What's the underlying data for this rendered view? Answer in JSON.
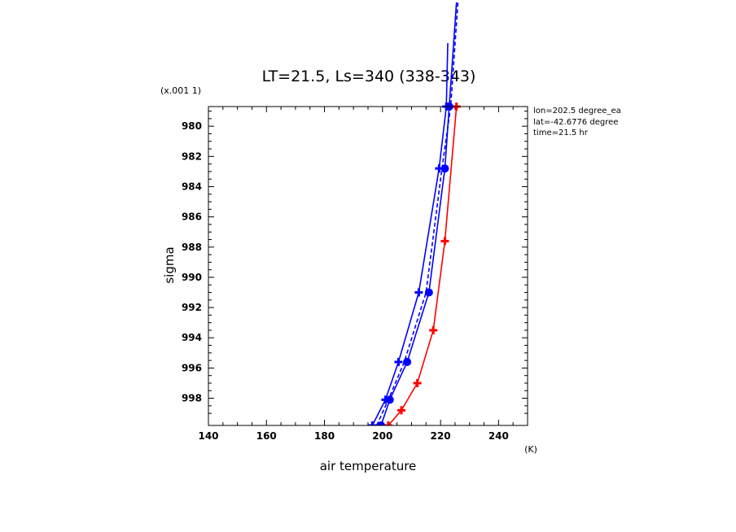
{
  "chart_data": {
    "type": "line",
    "title": "LT=21.5, Ls=340 (338-343)",
    "xlabel": "air temperature",
    "ylabel": "sigma",
    "x_unit": "(K)",
    "y_unit": "(x.001 1)",
    "xlim": [
      140,
      250
    ],
    "ylim": [
      978.7,
      999.8
    ],
    "y_inverted": true,
    "x_ticks": [
      140,
      160,
      180,
      200,
      220,
      240
    ],
    "y_ticks": [
      980,
      982,
      984,
      986,
      988,
      990,
      992,
      994,
      996,
      998
    ],
    "grid": false,
    "annotations": [
      "lon=202.5 degree_ea",
      "lat=-42.6776 degree",
      "time=21.5 hr"
    ],
    "colors": {
      "red": "#ff0000",
      "blue": "#0000ff"
    },
    "series": [
      {
        "color": "#ff0000",
        "dash": "solid",
        "marker": "plus",
        "points": [
          [
            202,
            999.8
          ],
          [
            206.5,
            998.8
          ],
          [
            212,
            997.0
          ],
          [
            217.5,
            993.5
          ],
          [
            221.5,
            987.6
          ],
          [
            225.5,
            978.7
          ]
        ]
      },
      {
        "color": "#0000ff",
        "dash": "solid",
        "marker": "plus",
        "points": [
          [
            196.5,
            999.8
          ],
          [
            201,
            998.1
          ],
          [
            205.5,
            995.6
          ],
          [
            212.5,
            991.0
          ],
          [
            219.5,
            982.8
          ],
          [
            222,
            978.7
          ],
          [
            222.5,
            974.5
          ]
        ]
      },
      {
        "color": "#0000ff",
        "dash": "solid",
        "marker": "circle",
        "points": [
          [
            199.5,
            999.8
          ],
          [
            202.5,
            998.1
          ],
          [
            208.5,
            995.6
          ],
          [
            216,
            991.0
          ],
          [
            221.5,
            982.8
          ],
          [
            223,
            978.7
          ],
          [
            225.5,
            971.8
          ]
        ]
      },
      {
        "color": "#0000ff",
        "dash": "dashed",
        "marker": "none",
        "points": [
          [
            198,
            999.8
          ],
          [
            202,
            998.1
          ],
          [
            207.5,
            995.6
          ],
          [
            215,
            991.0
          ],
          [
            220.5,
            982.8
          ],
          [
            223.5,
            978.7
          ],
          [
            226,
            971.8
          ]
        ]
      }
    ]
  }
}
